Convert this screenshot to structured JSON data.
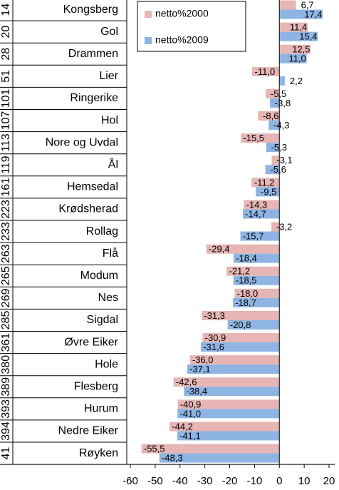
{
  "chart_data": {
    "type": "bar",
    "orientation": "horizontal",
    "row_numbers": [
      "14",
      "20",
      "28",
      "51",
      "101",
      "107",
      "113",
      "119",
      "161",
      "223",
      "233",
      "263",
      "265",
      "269",
      "285",
      "361",
      "380",
      "389",
      "393",
      "394",
      "41"
    ],
    "categories": [
      "Kongsberg",
      "Gol",
      "Drammen",
      "Lier",
      "Ringerike",
      "Hol",
      "Nore og Uvdal",
      "Ål",
      "Hemsedal",
      "Krødsherad",
      "Rollag",
      "Flå",
      "Modum",
      "Nes",
      "Sigdal",
      "Øvre Eiker",
      "Hole",
      "Flesberg",
      "Hurum",
      "Nedre Eiker",
      "Røyken"
    ],
    "series": [
      {
        "name": "netto%2000",
        "color": "#e6b5b4",
        "values": [
          6.7,
          11.4,
          12.5,
          -11.0,
          -5.5,
          -8.6,
          -15.5,
          -3.1,
          -11.2,
          -14.3,
          -3.2,
          -29.4,
          -21.2,
          -18.0,
          -31.3,
          -30.9,
          -36.0,
          -42.6,
          -40.9,
          -44.2,
          -55.5
        ],
        "value_labels": [
          "6,7",
          "11,4",
          "12,5",
          "-11,0",
          "-5,5",
          "-8,6",
          "-15,5",
          "-3,1",
          "-11,2",
          "-14,3",
          "-3,2",
          "-29,4",
          "-21,2",
          "-18,0",
          "-31,3",
          "-30,9",
          "-36,0",
          "-42,6",
          "-40,9",
          "-44,2",
          "-55,5"
        ]
      },
      {
        "name": "netto%2009",
        "color": "#8eb4e3",
        "values": [
          17.4,
          15.4,
          11.0,
          2.2,
          -3.8,
          -4.3,
          -5.3,
          -5.6,
          -9.5,
          -14.7,
          -15.7,
          -18.4,
          -18.5,
          -18.7,
          -20.8,
          -31.6,
          -37.1,
          -38.4,
          -41.0,
          -41.1,
          -48.3
        ],
        "value_labels": [
          "17,4",
          "15,4",
          "11,0",
          "2,2",
          "-3,8",
          "-4,3",
          "-5,3",
          "-5,6",
          "-9,5",
          "-14,7",
          "-15,7",
          "-18,4",
          "-18,5",
          "-18,7",
          "-20,8",
          "-31,6",
          "-37,1",
          "-38,4",
          "-41,0",
          "-41,1",
          "-48,3"
        ]
      }
    ],
    "xlim": [
      -60,
      20
    ],
    "xticks": [
      -60,
      -50,
      -40,
      -30,
      -20,
      -10,
      0,
      10,
      20
    ],
    "legend": "upper-left"
  }
}
